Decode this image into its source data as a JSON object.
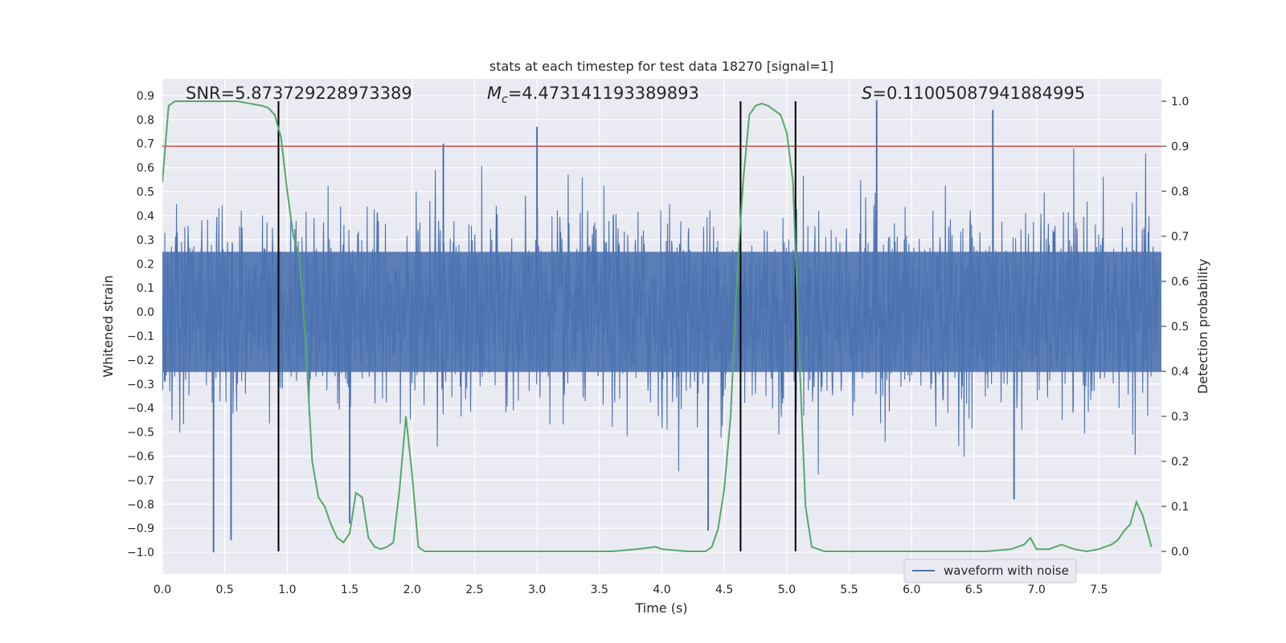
{
  "chart_data": {
    "type": "line",
    "title": "stats at each timestep for test data 18270 [signal=1]",
    "xlabel": "Time (s)",
    "ylabel_left": "Whitened strain",
    "ylabel_right": "Detection probability",
    "xlim": [
      0.0,
      8.0
    ],
    "ylim_left": [
      -1.09,
      0.97
    ],
    "ylim_right": [
      -0.05,
      1.05
    ],
    "x_ticks": [
      "0.0",
      "0.5",
      "1.0",
      "1.5",
      "2.0",
      "2.5",
      "3.0",
      "3.5",
      "4.0",
      "4.5",
      "5.0",
      "5.5",
      "6.0",
      "6.5",
      "7.0",
      "7.5"
    ],
    "y_ticks_left": [
      "0.9",
      "0.8",
      "0.7",
      "0.6",
      "0.5",
      "0.4",
      "0.3",
      "0.2",
      "0.1",
      "0.0",
      "−0.1",
      "−0.2",
      "−0.3",
      "−0.4",
      "−0.5",
      "−0.6",
      "−0.7",
      "−0.8",
      "−0.9",
      "−1.0"
    ],
    "y_ticks_right": [
      "1.0",
      "0.9",
      "0.8",
      "0.7",
      "0.6",
      "0.5",
      "0.4",
      "0.3",
      "0.2",
      "0.1",
      "0.0"
    ],
    "annotations": {
      "snr": "SNR=5.873729228973389",
      "mc_symbol": "M",
      "mc_sub": "c",
      "mc_value": "=4.473141193389893",
      "s_symbol": "S",
      "s_value": "=0.11005087941884995"
    },
    "threshold_probability": 0.9,
    "vertical_markers_s": [
      0.93,
      4.63,
      5.07
    ],
    "legend": [
      "waveform with noise"
    ],
    "series": [
      {
        "name": "waveform with noise",
        "axis": "left",
        "color": "#4c72b0",
        "description": "whitened strain noise sampled over 0–8 s; amplitude mostly within ±0.5, extreme spikes",
        "notable_points": [
          {
            "x": 0.41,
            "y": -1.0
          },
          {
            "x": 0.55,
            "y": -0.95
          },
          {
            "x": 1.5,
            "y": -0.88
          },
          {
            "x": 2.25,
            "y": 0.7
          },
          {
            "x": 3.0,
            "y": 0.77
          },
          {
            "x": 4.37,
            "y": -0.91
          },
          {
            "x": 5.72,
            "y": 0.88
          },
          {
            "x": 6.65,
            "y": 0.84
          },
          {
            "x": 6.82,
            "y": -0.78
          }
        ]
      },
      {
        "name": "detection probability",
        "axis": "right",
        "color": "#55a868",
        "x": [
          0.0,
          0.05,
          0.1,
          0.2,
          0.3,
          0.4,
          0.5,
          0.6,
          0.7,
          0.8,
          0.85,
          0.9,
          0.95,
          1.0,
          1.05,
          1.1,
          1.15,
          1.2,
          1.25,
          1.3,
          1.35,
          1.4,
          1.45,
          1.5,
          1.55,
          1.6,
          1.65,
          1.7,
          1.75,
          1.8,
          1.85,
          1.9,
          1.95,
          2.0,
          2.05,
          2.1,
          2.2,
          2.3,
          2.5,
          2.8,
          3.0,
          3.2,
          3.4,
          3.5,
          3.6,
          3.8,
          3.95,
          4.0,
          4.2,
          4.3,
          4.35,
          4.4,
          4.45,
          4.5,
          4.55,
          4.6,
          4.65,
          4.7,
          4.75,
          4.8,
          4.85,
          4.9,
          4.95,
          5.0,
          5.05,
          5.1,
          5.15,
          5.2,
          5.25,
          5.3,
          5.4,
          5.6,
          5.8,
          6.0,
          6.2,
          6.4,
          6.6,
          6.8,
          6.9,
          6.95,
          7.0,
          7.1,
          7.2,
          7.3,
          7.4,
          7.5,
          7.6,
          7.65,
          7.7,
          7.75,
          7.8,
          7.85,
          7.92
        ],
        "y": [
          0.82,
          0.99,
          1.0,
          1.0,
          1.0,
          1.0,
          1.0,
          1.0,
          0.995,
          0.99,
          0.985,
          0.97,
          0.92,
          0.8,
          0.7,
          0.65,
          0.45,
          0.2,
          0.12,
          0.1,
          0.06,
          0.03,
          0.02,
          0.04,
          0.13,
          0.12,
          0.03,
          0.01,
          0.005,
          0.01,
          0.02,
          0.14,
          0.3,
          0.17,
          0.01,
          0.0,
          0.0,
          0.0,
          0.0,
          0.0,
          0.0,
          0.0,
          0.0,
          0.0,
          0.0,
          0.005,
          0.01,
          0.005,
          0.0,
          0.0,
          0.0,
          0.01,
          0.05,
          0.14,
          0.3,
          0.6,
          0.82,
          0.97,
          0.99,
          0.995,
          0.99,
          0.98,
          0.97,
          0.93,
          0.82,
          0.44,
          0.1,
          0.01,
          0.005,
          0.0,
          0.0,
          0.0,
          0.0,
          0.0,
          0.0,
          0.0,
          0.0,
          0.005,
          0.015,
          0.03,
          0.005,
          0.005,
          0.015,
          0.005,
          0.0,
          0.005,
          0.015,
          0.025,
          0.045,
          0.06,
          0.11,
          0.08,
          0.01
        ]
      }
    ]
  }
}
